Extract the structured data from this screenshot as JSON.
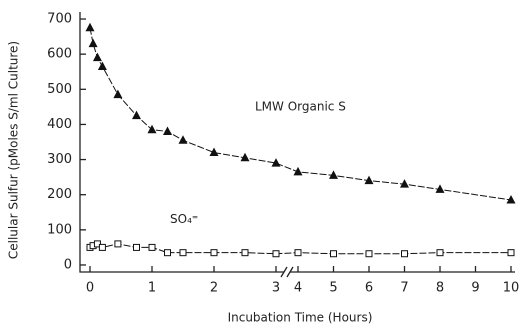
{
  "chart_data": {
    "type": "line",
    "x_label": "Incubation Time (Hours)",
    "y_label": "Cellular Sulfur (pMoles S/ml Culture)",
    "x": [
      0,
      0.05,
      0.12,
      0.2,
      0.45,
      0.75,
      1.0,
      1.25,
      1.5,
      2.0,
      2.5,
      3.0,
      4.0,
      5.0,
      6.0,
      7.0,
      8.0,
      10.0
    ],
    "series": [
      {
        "name": "LMW Organic S",
        "color": "#111",
        "marker": "triangle",
        "values": [
          675,
          630,
          590,
          565,
          485,
          425,
          385,
          380,
          355,
          320,
          305,
          290,
          265,
          255,
          240,
          230,
          215,
          185
        ]
      },
      {
        "name": "SO₄⁼",
        "color": "#111",
        "marker": "square",
        "values": [
          50,
          55,
          60,
          50,
          60,
          50,
          50,
          35,
          35,
          35,
          35,
          32,
          35,
          32,
          32,
          32,
          35,
          35
        ]
      }
    ],
    "xlim": [
      -0.15,
      10
    ],
    "xbreak": [
      3,
      4
    ],
    "xticks": [
      0,
      1,
      2,
      3,
      4,
      5,
      6,
      7,
      8,
      9,
      10
    ],
    "ylim": [
      -20,
      720
    ],
    "yticks": [
      0,
      100,
      200,
      300,
      400,
      500,
      600,
      700
    ]
  }
}
